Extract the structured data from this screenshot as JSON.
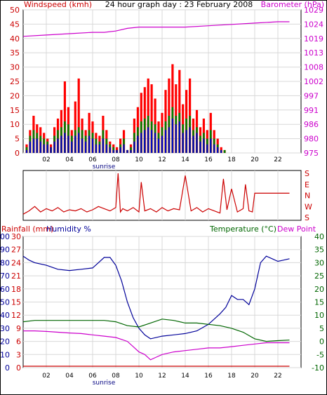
{
  "chart_data": [
    {
      "type": "bar",
      "title": "24 hour graph day : 23 February 2008",
      "left_axis_label": "Windspeed (kmh)",
      "right_axis_label": "Barometer (hPa)",
      "x_tick_labels": [
        "02",
        "04",
        "06",
        "08",
        "10",
        "12",
        "14",
        "16",
        "18",
        "20",
        "22"
      ],
      "x_annotation": "sunrise",
      "left_ticks": [
        "0",
        "5",
        "10",
        "15",
        "20",
        "25",
        "30",
        "35",
        "40",
        "45",
        "50"
      ],
      "right_ticks": [
        "975",
        "980",
        "986",
        "991",
        "997",
        "1002",
        "1008",
        "1013",
        "1019",
        "1024",
        "1029"
      ],
      "ylim_left": [
        0,
        50
      ],
      "ylim_right": [
        975,
        1029
      ],
      "grid": true,
      "series": [
        {
          "color": "#ff0000",
          "x": [
            0.3,
            0.6,
            0.9,
            1.2,
            1.5,
            1.8,
            2.1,
            2.4,
            2.7,
            3.0,
            3.3,
            3.6,
            3.9,
            4.2,
            4.5,
            4.8,
            5.1,
            5.4,
            5.7,
            6.0,
            6.3,
            6.6,
            6.9,
            7.2,
            7.5,
            7.8,
            8.1,
            8.4,
            8.7,
            9.0,
            9.3,
            9.6,
            9.9,
            10.2,
            10.5,
            10.8,
            11.1,
            11.4,
            11.7,
            12.0,
            12.3,
            12.6,
            12.9,
            13.2,
            13.5,
            13.8,
            14.1,
            14.4,
            14.7,
            15.0,
            15.3,
            15.6,
            15.9,
            16.2,
            16.5,
            16.8,
            17.1,
            17.4
          ],
          "values": [
            3,
            8,
            13,
            10,
            9,
            7,
            5,
            3,
            9,
            12,
            15,
            25,
            16,
            8,
            18,
            26,
            12,
            8,
            14,
            11,
            7,
            6,
            13,
            8,
            4,
            3,
            2,
            5,
            8,
            1,
            3,
            12,
            16,
            21,
            23,
            26,
            24,
            19,
            11,
            14,
            22,
            26,
            31,
            24,
            29,
            17,
            22,
            26,
            12,
            15,
            9,
            12,
            8,
            14,
            8,
            5,
            2,
            1
          ]
        },
        {
          "color": "#008000",
          "x": [
            0.3,
            0.6,
            0.9,
            1.2,
            1.5,
            1.8,
            2.1,
            2.4,
            2.7,
            3.0,
            3.3,
            3.6,
            3.9,
            4.2,
            4.5,
            4.8,
            5.1,
            5.4,
            5.7,
            6.0,
            6.3,
            6.6,
            6.9,
            7.2,
            7.5,
            7.8,
            8.1,
            8.4,
            8.7,
            9.0,
            9.3,
            9.6,
            9.9,
            10.2,
            10.5,
            10.8,
            11.1,
            11.4,
            11.7,
            12.0,
            12.3,
            12.6,
            12.9,
            13.2,
            13.5,
            13.8,
            14.1,
            14.4,
            14.7,
            15.0,
            15.3,
            15.6,
            15.9,
            16.2,
            16.5,
            16.8,
            17.1,
            17.4
          ],
          "values": [
            2,
            6,
            8,
            7,
            6,
            5,
            4,
            2,
            6,
            8,
            9,
            11,
            10,
            6,
            8,
            9,
            8,
            6,
            8,
            7,
            5,
            4,
            8,
            5,
            3,
            2,
            1,
            3,
            5,
            1,
            2,
            7,
            9,
            11,
            12,
            13,
            11,
            10,
            7,
            9,
            11,
            13,
            16,
            13,
            14,
            10,
            12,
            13,
            8,
            9,
            6,
            7,
            5,
            8,
            5,
            3,
            1,
            1
          ]
        },
        {
          "color": "#0000cc",
          "x": [
            0.3,
            0.6,
            0.9,
            1.2,
            1.5,
            1.8,
            2.1,
            2.4,
            2.7,
            3.0,
            3.3,
            3.6,
            3.9,
            4.2,
            4.5,
            4.8,
            5.1,
            5.4,
            5.7,
            6.0,
            6.3,
            6.6,
            6.9,
            7.2,
            7.5,
            7.8,
            8.1,
            8.4,
            8.7,
            9.0,
            9.3,
            9.6,
            9.9,
            10.2,
            10.5,
            10.8,
            11.1,
            11.4,
            11.7,
            12.0,
            12.3,
            12.6,
            12.9,
            13.2,
            13.5,
            13.8,
            14.1,
            14.4,
            14.7,
            15.0,
            15.3,
            15.6,
            15.9,
            16.2,
            16.5,
            16.8,
            17.1,
            17.4
          ],
          "values": [
            1,
            4,
            5,
            5,
            4,
            3,
            3,
            2,
            4,
            5,
            6,
            7,
            6,
            4,
            6,
            7,
            5,
            4,
            6,
            5,
            3,
            3,
            5,
            3,
            2,
            1,
            1,
            2,
            3,
            1,
            1,
            4,
            6,
            7,
            8,
            9,
            8,
            7,
            5,
            6,
            8,
            9,
            12,
            10,
            11,
            7,
            8,
            9,
            6,
            7,
            4,
            5,
            3,
            5,
            3,
            2,
            1,
            0
          ]
        },
        {
          "color": "#cc00cc",
          "axis": "right",
          "x": [
            0,
            2,
            4,
            6,
            7,
            8,
            9,
            10,
            12,
            14,
            16,
            18,
            20,
            22,
            23
          ],
          "values": [
            1019,
            1019.5,
            1020,
            1020.5,
            1020.5,
            1021,
            1022,
            1022.5,
            1022.5,
            1022.5,
            1023,
            1023.5,
            1024,
            1024.5,
            1024.5
          ]
        }
      ]
    },
    {
      "type": "line",
      "right_axis_labels": [
        "S",
        "E",
        "N",
        "W",
        "S"
      ],
      "grid": true,
      "series": [
        {
          "color": "#cc0000",
          "x": [
            0,
            0.5,
            1,
            1.5,
            2,
            2.5,
            3,
            3.5,
            4,
            4.5,
            5,
            5.5,
            6,
            6.5,
            7,
            7.5,
            8,
            8.2,
            8.4,
            8.6,
            9,
            9.5,
            10,
            10.2,
            10.5,
            11,
            11.5,
            12,
            12.5,
            13,
            13.5,
            14,
            14.5,
            15,
            15.5,
            16,
            16.5,
            17,
            17.3,
            17.6,
            18,
            18.5,
            19,
            19.2,
            19.5,
            19.8,
            20,
            20.5,
            21,
            21.5,
            22,
            22.5,
            23
          ],
          "values": [
            0.3,
            0.6,
            1,
            0.5,
            0.8,
            0.6,
            0.9,
            0.5,
            0.7,
            0.6,
            0.8,
            0.5,
            0.7,
            1,
            0.8,
            0.6,
            0.9,
            4,
            0.5,
            0.8,
            0.6,
            0.9,
            0.5,
            3.2,
            0.6,
            0.8,
            0.5,
            0.9,
            0.6,
            0.8,
            0.7,
            3.8,
            0.6,
            0.9,
            0.5,
            0.8,
            0.6,
            0.4,
            3.5,
            0.7,
            2.6,
            0.5,
            0.8,
            3.0,
            0.6,
            0.5,
            2.2,
            2.2,
            2.2,
            2.2,
            2.2,
            2.2,
            2.2
          ]
        }
      ]
    },
    {
      "type": "line",
      "left_axis_label_rainfall": "Rainfall (mm)",
      "left_axis_label_humidity": "Humidity %",
      "right_axis_label_temp": "Temperature (°C)",
      "right_axis_label_dew": "Dew Point",
      "x_tick_labels": [
        "02",
        "04",
        "06",
        "08",
        "10",
        "12",
        "14",
        "16",
        "18",
        "20",
        "22"
      ],
      "x_annotation": "sunrise",
      "humidity_ticks": [
        "0",
        "10",
        "20",
        "30",
        "40",
        "50",
        "60",
        "70",
        "80",
        "90",
        "100"
      ],
      "rainfall_ticks": [
        "0",
        "3",
        "6",
        "9",
        "12",
        "15",
        "18",
        "21",
        "24",
        "27",
        "30"
      ],
      "temp_ticks": [
        "-10",
        "-5",
        "0",
        "5",
        "10",
        "15",
        "20",
        "25",
        "30",
        "35",
        "40"
      ],
      "ylim_humidity": [
        0,
        100
      ],
      "ylim_temp": [
        -10,
        40
      ],
      "grid": true,
      "series": [
        {
          "color": "#000099",
          "axis": "humidity",
          "x": [
            0,
            0.5,
            1,
            2,
            3,
            4,
            5,
            6,
            6.5,
            7,
            7.5,
            8,
            8.5,
            9,
            9.5,
            10,
            10.5,
            11,
            12,
            13,
            14,
            15,
            16,
            17,
            17.5,
            18,
            18.5,
            19,
            19.5,
            20,
            20.5,
            21,
            21.5,
            22,
            22.5,
            23
          ],
          "values": [
            85,
            82,
            80,
            78,
            75,
            74,
            75,
            76,
            80,
            84,
            84,
            78,
            66,
            50,
            38,
            30,
            25,
            22,
            24,
            25,
            26,
            28,
            33,
            41,
            46,
            55,
            52,
            52,
            48,
            60,
            80,
            85,
            83,
            81,
            82,
            83
          ]
        },
        {
          "color": "#006600",
          "axis": "temp",
          "x": [
            0,
            1,
            2,
            3,
            4,
            5,
            6,
            7,
            8,
            9,
            10,
            11,
            12,
            13,
            14,
            15,
            16,
            17,
            18,
            19,
            20,
            21,
            22,
            23
          ],
          "values": [
            7.5,
            8,
            8,
            8,
            8,
            8,
            8,
            8,
            7.5,
            6,
            5.5,
            7,
            8.5,
            8,
            7,
            7,
            6.5,
            6,
            5,
            3.5,
            1,
            0,
            0.3,
            0.5
          ]
        },
        {
          "color": "#cc00cc",
          "axis": "temp",
          "x": [
            0,
            1,
            2,
            3,
            4,
            5,
            6,
            7,
            8,
            9,
            9.5,
            10,
            10.5,
            11,
            11.5,
            12,
            13,
            14,
            15,
            16,
            17,
            18,
            19,
            20,
            21,
            22,
            23
          ],
          "values": [
            4,
            4,
            3.8,
            3.5,
            3.2,
            3,
            2.5,
            2,
            1.5,
            0,
            -2,
            -4,
            -5,
            -7,
            -6,
            -5,
            -4,
            -3.5,
            -3,
            -2.5,
            -2.5,
            -2,
            -1.5,
            -1,
            -0.5,
            -0.5,
            -0.5
          ]
        },
        {
          "color": "#cc0000",
          "axis": "rainfall",
          "x": [
            0,
            23
          ],
          "values": [
            0,
            0
          ]
        }
      ]
    }
  ]
}
